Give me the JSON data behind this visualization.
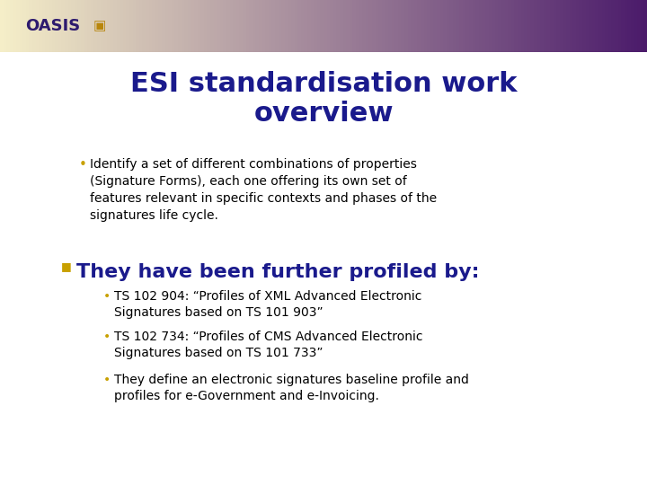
{
  "title_line1": "ESI standardisation work",
  "title_line2": "overview",
  "title_color": "#1a1a8c",
  "title_fontsize": 22,
  "bg_color": "#ffffff",
  "header_bg_left": "#f5eec8",
  "header_bg_right": "#4a1a6a",
  "oasis_text": "OASIS",
  "oasis_color": "#2d1a6e",
  "oasis_fontsize": 13,
  "bullet1_text": "Identify a set of different combinations of properties\n(Signature Forms), each one offering its own set of\nfeatures relevant in specific contexts and phases of the\nsignatures life cycle.",
  "bullet1_color": "#c8a000",
  "bullet2_header": "They have been further profiled by:",
  "bullet2_header_color": "#1a1a8c",
  "bullet2_header_fontsize": 16,
  "bullet2_marker_color": "#c8a000",
  "sub_bullet_color": "#c8a000",
  "sub_bullets": [
    "TS 102 904: “Profiles of XML Advanced Electronic\nSignatures based on TS 101 903”",
    "TS 102 734: “Profiles of CMS Advanced Electronic\nSignatures based on TS 101 733”",
    "They define an electronic signatures baseline profile and\nprofiles for e-Government and e-Invoicing."
  ],
  "text_color": "#000000",
  "bullet_fontsize": 10,
  "sub_bullet_fontsize": 10
}
